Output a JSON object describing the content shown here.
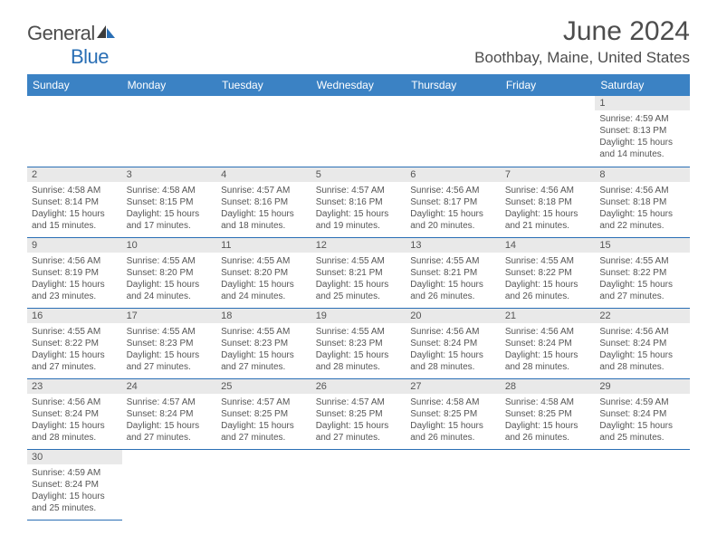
{
  "logo": {
    "text1": "General",
    "text2": "Blue"
  },
  "title": "June 2024",
  "location": "Boothbay, Maine, United States",
  "colors": {
    "header_bg": "#3b82c4",
    "header_text": "#ffffff",
    "border": "#2a6fb5",
    "daynum_bg": "#e9e9e9",
    "body_text": "#555555",
    "title_text": "#4d4d4d",
    "logo_blue": "#2a6fb5"
  },
  "weekdays": [
    "Sunday",
    "Monday",
    "Tuesday",
    "Wednesday",
    "Thursday",
    "Friday",
    "Saturday"
  ],
  "grid": [
    [
      null,
      null,
      null,
      null,
      null,
      null,
      {
        "n": "1",
        "sr": "4:59 AM",
        "ss": "8:13 PM",
        "dl": "15 hours and 14 minutes."
      }
    ],
    [
      {
        "n": "2",
        "sr": "4:58 AM",
        "ss": "8:14 PM",
        "dl": "15 hours and 15 minutes."
      },
      {
        "n": "3",
        "sr": "4:58 AM",
        "ss": "8:15 PM",
        "dl": "15 hours and 17 minutes."
      },
      {
        "n": "4",
        "sr": "4:57 AM",
        "ss": "8:16 PM",
        "dl": "15 hours and 18 minutes."
      },
      {
        "n": "5",
        "sr": "4:57 AM",
        "ss": "8:16 PM",
        "dl": "15 hours and 19 minutes."
      },
      {
        "n": "6",
        "sr": "4:56 AM",
        "ss": "8:17 PM",
        "dl": "15 hours and 20 minutes."
      },
      {
        "n": "7",
        "sr": "4:56 AM",
        "ss": "8:18 PM",
        "dl": "15 hours and 21 minutes."
      },
      {
        "n": "8",
        "sr": "4:56 AM",
        "ss": "8:18 PM",
        "dl": "15 hours and 22 minutes."
      }
    ],
    [
      {
        "n": "9",
        "sr": "4:56 AM",
        "ss": "8:19 PM",
        "dl": "15 hours and 23 minutes."
      },
      {
        "n": "10",
        "sr": "4:55 AM",
        "ss": "8:20 PM",
        "dl": "15 hours and 24 minutes."
      },
      {
        "n": "11",
        "sr": "4:55 AM",
        "ss": "8:20 PM",
        "dl": "15 hours and 24 minutes."
      },
      {
        "n": "12",
        "sr": "4:55 AM",
        "ss": "8:21 PM",
        "dl": "15 hours and 25 minutes."
      },
      {
        "n": "13",
        "sr": "4:55 AM",
        "ss": "8:21 PM",
        "dl": "15 hours and 26 minutes."
      },
      {
        "n": "14",
        "sr": "4:55 AM",
        "ss": "8:22 PM",
        "dl": "15 hours and 26 minutes."
      },
      {
        "n": "15",
        "sr": "4:55 AM",
        "ss": "8:22 PM",
        "dl": "15 hours and 27 minutes."
      }
    ],
    [
      {
        "n": "16",
        "sr": "4:55 AM",
        "ss": "8:22 PM",
        "dl": "15 hours and 27 minutes."
      },
      {
        "n": "17",
        "sr": "4:55 AM",
        "ss": "8:23 PM",
        "dl": "15 hours and 27 minutes."
      },
      {
        "n": "18",
        "sr": "4:55 AM",
        "ss": "8:23 PM",
        "dl": "15 hours and 27 minutes."
      },
      {
        "n": "19",
        "sr": "4:55 AM",
        "ss": "8:23 PM",
        "dl": "15 hours and 28 minutes."
      },
      {
        "n": "20",
        "sr": "4:56 AM",
        "ss": "8:24 PM",
        "dl": "15 hours and 28 minutes."
      },
      {
        "n": "21",
        "sr": "4:56 AM",
        "ss": "8:24 PM",
        "dl": "15 hours and 28 minutes."
      },
      {
        "n": "22",
        "sr": "4:56 AM",
        "ss": "8:24 PM",
        "dl": "15 hours and 28 minutes."
      }
    ],
    [
      {
        "n": "23",
        "sr": "4:56 AM",
        "ss": "8:24 PM",
        "dl": "15 hours and 28 minutes."
      },
      {
        "n": "24",
        "sr": "4:57 AM",
        "ss": "8:24 PM",
        "dl": "15 hours and 27 minutes."
      },
      {
        "n": "25",
        "sr": "4:57 AM",
        "ss": "8:25 PM",
        "dl": "15 hours and 27 minutes."
      },
      {
        "n": "26",
        "sr": "4:57 AM",
        "ss": "8:25 PM",
        "dl": "15 hours and 27 minutes."
      },
      {
        "n": "27",
        "sr": "4:58 AM",
        "ss": "8:25 PM",
        "dl": "15 hours and 26 minutes."
      },
      {
        "n": "28",
        "sr": "4:58 AM",
        "ss": "8:25 PM",
        "dl": "15 hours and 26 minutes."
      },
      {
        "n": "29",
        "sr": "4:59 AM",
        "ss": "8:24 PM",
        "dl": "15 hours and 25 minutes."
      }
    ],
    [
      {
        "n": "30",
        "sr": "4:59 AM",
        "ss": "8:24 PM",
        "dl": "15 hours and 25 minutes."
      },
      null,
      null,
      null,
      null,
      null,
      null
    ]
  ],
  "labels": {
    "sunrise": "Sunrise:",
    "sunset": "Sunset:",
    "daylight": "Daylight:"
  }
}
